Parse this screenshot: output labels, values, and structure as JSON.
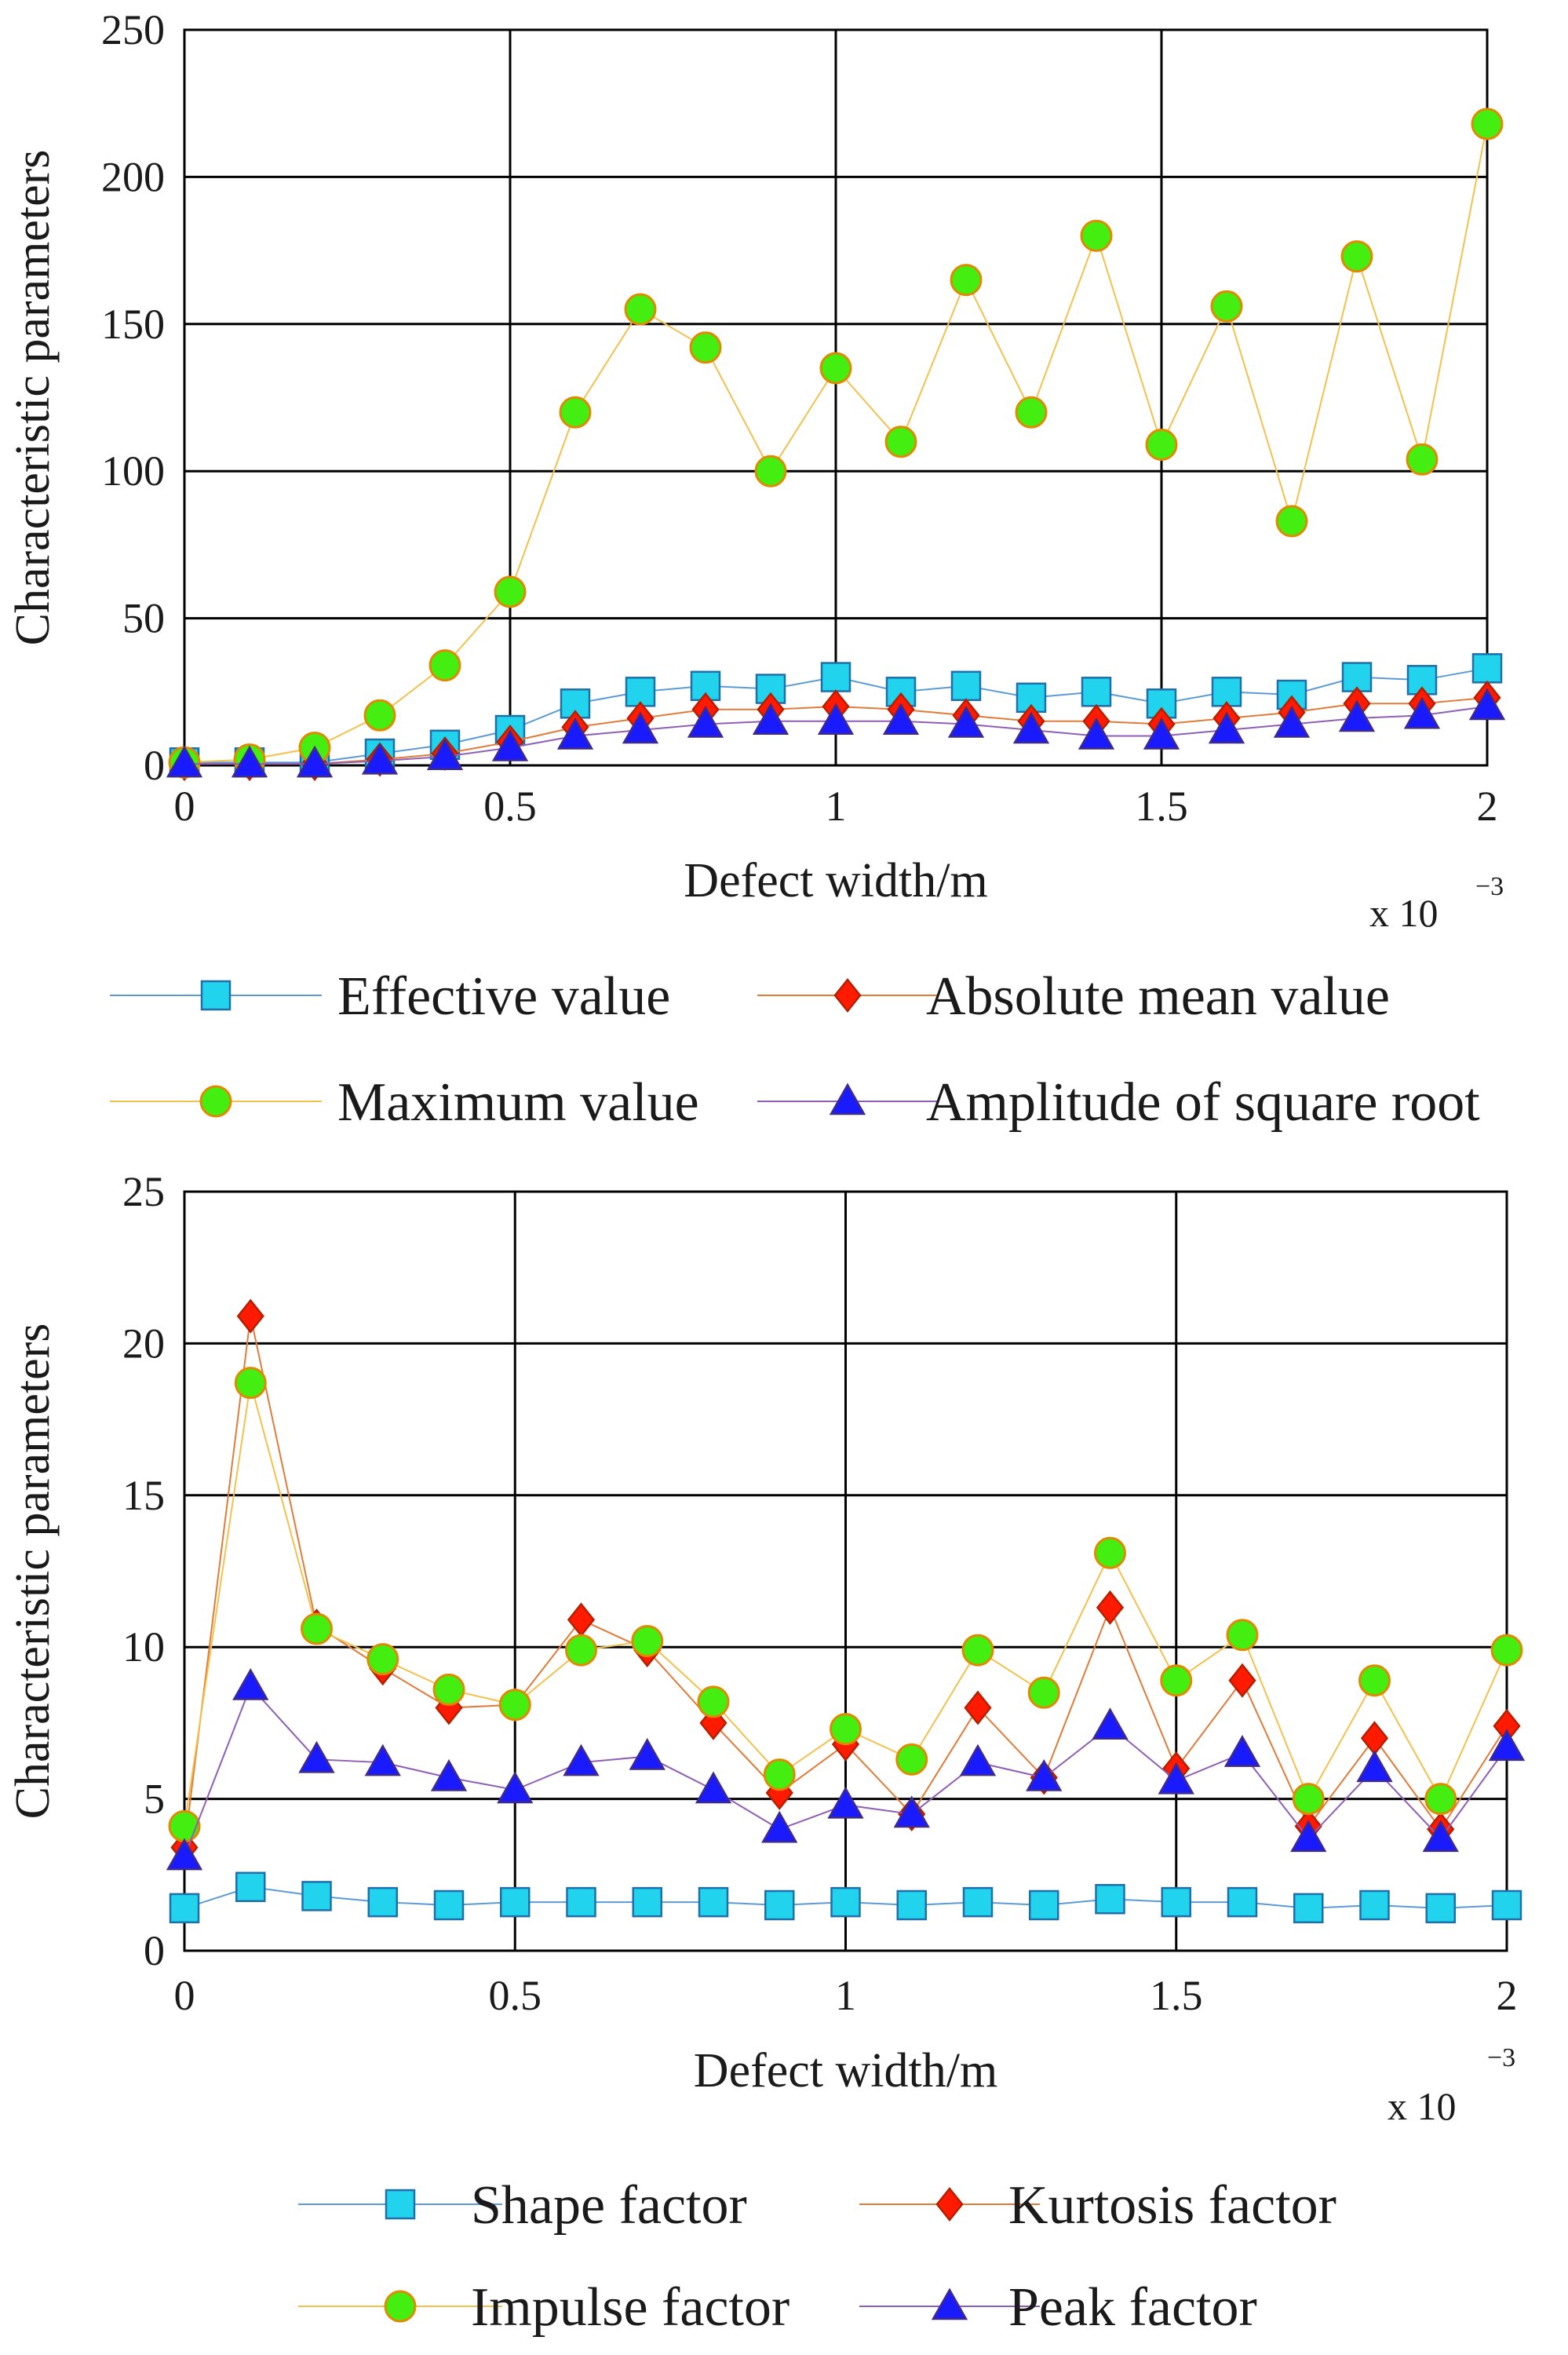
{
  "chart_data": [
    {
      "type": "line",
      "title": "",
      "xlabel": "Defect width/m",
      "ylabel": "Characteristic parameters",
      "x_multiplier_label": "x 10",
      "x_multiplier_exponent": "−3",
      "x": [
        0,
        0.1,
        0.2,
        0.3,
        0.4,
        0.5,
        0.6,
        0.7,
        0.8,
        0.9,
        1.0,
        1.1,
        1.2,
        1.3,
        1.4,
        1.5,
        1.6,
        1.7,
        1.8,
        1.9,
        2.0
      ],
      "xlim": [
        0,
        2
      ],
      "ylim": [
        0,
        250
      ],
      "xticks": [
        0,
        0.5,
        1,
        1.5,
        2
      ],
      "xtick_labels": [
        "0",
        "0.5",
        "1",
        "1.5",
        "2"
      ],
      "yticks": [
        0,
        50,
        100,
        150,
        200,
        250
      ],
      "ytick_labels": [
        "0",
        "50",
        "100",
        "150",
        "200",
        "250"
      ],
      "grid": true,
      "legend_position": "bottom",
      "series": [
        {
          "name": "Effective value",
          "marker": "square",
          "line_color": "#5b9bd5",
          "fill": "#22d3ee",
          "values": [
            1,
            1,
            1,
            4,
            7,
            12,
            21,
            25,
            27,
            26,
            30,
            25,
            27,
            23,
            25,
            21,
            25,
            24,
            30,
            29,
            33
          ]
        },
        {
          "name": "Absolute mean value",
          "marker": "diamond",
          "line_color": "#e07b39",
          "fill": "#ff1a00",
          "values": [
            0.5,
            0.5,
            0.5,
            2,
            4,
            8,
            13,
            16,
            19,
            19,
            20,
            19,
            17,
            15,
            15,
            14,
            16,
            18,
            21,
            21,
            23
          ]
        },
        {
          "name": "Maximum value",
          "marker": "circle",
          "line_color": "#f2c14e",
          "fill": "#44ee11",
          "values": [
            1,
            2,
            6,
            17,
            34,
            59,
            120,
            155,
            142,
            100,
            135,
            110,
            165,
            120,
            180,
            109,
            156,
            83,
            173,
            104,
            218
          ]
        },
        {
          "name": "Amplitude of square root",
          "marker": "triangle",
          "line_color": "#8e5fb5",
          "fill": "#1a1aff",
          "values": [
            0.5,
            0.5,
            0.5,
            1.5,
            3,
            6,
            10,
            12,
            14,
            15,
            15,
            15,
            14,
            12,
            10,
            10,
            12,
            14,
            16,
            17,
            20
          ]
        }
      ]
    },
    {
      "type": "line",
      "title": "",
      "xlabel": "Defect width/m",
      "ylabel": "Characteristic parameters",
      "x_multiplier_label": "x 10",
      "x_multiplier_exponent": "−3",
      "x": [
        0,
        0.1,
        0.2,
        0.3,
        0.4,
        0.5,
        0.6,
        0.7,
        0.8,
        0.9,
        1.0,
        1.1,
        1.2,
        1.3,
        1.4,
        1.5,
        1.6,
        1.7,
        1.8,
        1.9,
        2.0
      ],
      "xlim": [
        0,
        2
      ],
      "ylim": [
        0,
        25
      ],
      "xticks": [
        0,
        0.5,
        1,
        1.5,
        2
      ],
      "xtick_labels": [
        "0",
        "0.5",
        "1",
        "1.5",
        "2"
      ],
      "yticks": [
        0,
        5,
        10,
        15,
        20,
        25
      ],
      "ytick_labels": [
        "0",
        "5",
        "10",
        "15",
        "20",
        "25"
      ],
      "grid": true,
      "legend_position": "bottom",
      "series": [
        {
          "name": "Shape factor",
          "marker": "square",
          "line_color": "#5b9bd5",
          "fill": "#22d3ee",
          "values": [
            1.4,
            2.1,
            1.8,
            1.6,
            1.5,
            1.6,
            1.6,
            1.6,
            1.6,
            1.5,
            1.6,
            1.5,
            1.6,
            1.5,
            1.7,
            1.6,
            1.6,
            1.4,
            1.5,
            1.4,
            1.5
          ]
        },
        {
          "name": "Kurtosis factor",
          "marker": "diamond",
          "line_color": "#e07b39",
          "fill": "#ff1a00",
          "values": [
            3.4,
            20.9,
            10.7,
            9.3,
            8.0,
            8.1,
            10.9,
            9.9,
            7.5,
            5.2,
            6.8,
            4.5,
            8.0,
            5.7,
            11.3,
            6.0,
            8.9,
            4.1,
            7.0,
            4.0,
            7.4
          ]
        },
        {
          "name": "Impulse factor",
          "marker": "circle",
          "line_color": "#f2c14e",
          "fill": "#44ee11",
          "values": [
            4.1,
            18.7,
            10.6,
            9.6,
            8.6,
            8.1,
            9.9,
            10.2,
            8.2,
            5.8,
            7.3,
            6.3,
            9.9,
            8.5,
            13.1,
            8.9,
            10.4,
            5.0,
            8.9,
            5.0,
            9.9
          ]
        },
        {
          "name": "Peak factor",
          "marker": "triangle",
          "line_color": "#8e5fb5",
          "fill": "#1a1aff",
          "values": [
            3.1,
            8.7,
            6.3,
            6.2,
            5.7,
            5.3,
            6.2,
            6.4,
            5.3,
            4.0,
            4.8,
            4.5,
            6.2,
            5.7,
            7.4,
            5.6,
            6.5,
            3.7,
            6.0,
            3.7,
            6.7
          ]
        }
      ]
    }
  ]
}
